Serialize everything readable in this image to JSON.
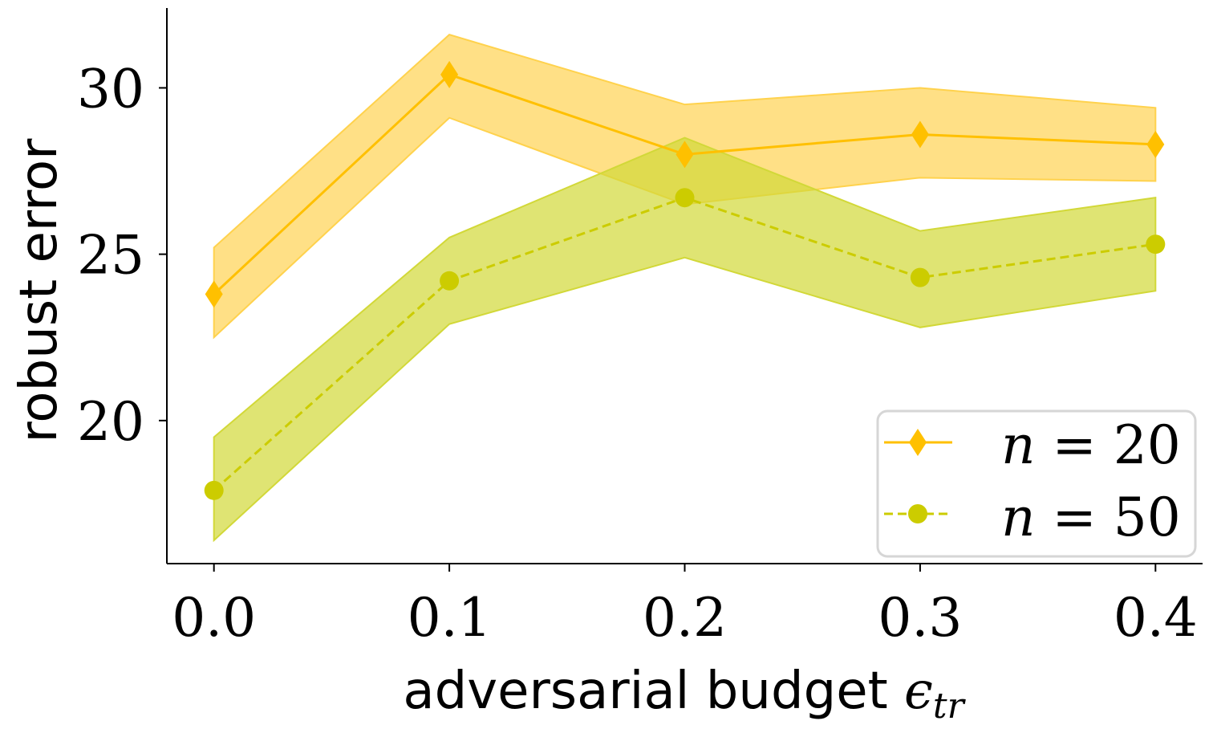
{
  "chart_data": {
    "type": "line",
    "title": "",
    "xlabel": "adversarial budget",
    "xlabel_math": "ϵ",
    "xlabel_subscript": "tr",
    "ylabel": "robust error",
    "x": [
      0.0,
      0.1,
      0.2,
      0.3,
      0.4
    ],
    "xtick_labels": [
      "0.0",
      "0.1",
      "0.2",
      "0.3",
      "0.4"
    ],
    "yticks": [
      20,
      25,
      30
    ],
    "ytick_labels": [
      "20",
      "25",
      "30"
    ],
    "xlim": [
      -0.02,
      0.42
    ],
    "ylim": [
      15.7,
      32.4
    ],
    "grid": false,
    "legend_position": "bottom-right",
    "series": [
      {
        "name": "n = 20",
        "name_var": "n",
        "name_rest": " = 20",
        "values": [
          23.8,
          30.4,
          28.0,
          28.6,
          28.3
        ],
        "lower": [
          22.5,
          29.1,
          26.5,
          27.3,
          27.2
        ],
        "upper": [
          25.2,
          31.6,
          29.5,
          30.0,
          29.4
        ],
        "color": "#FFC000",
        "band_color": "#FFD24D",
        "marker": "diamond",
        "linestyle": "solid"
      },
      {
        "name": "n = 50",
        "name_var": "n",
        "name_rest": " = 50",
        "values": [
          17.9,
          24.2,
          26.7,
          24.3,
          25.3
        ],
        "lower": [
          16.4,
          22.9,
          24.9,
          22.8,
          23.9
        ],
        "upper": [
          19.5,
          25.5,
          28.5,
          25.7,
          26.7
        ],
        "color": "#CCCC00",
        "band_color": "#D2D838",
        "marker": "circle",
        "linestyle": "dashed"
      }
    ]
  }
}
